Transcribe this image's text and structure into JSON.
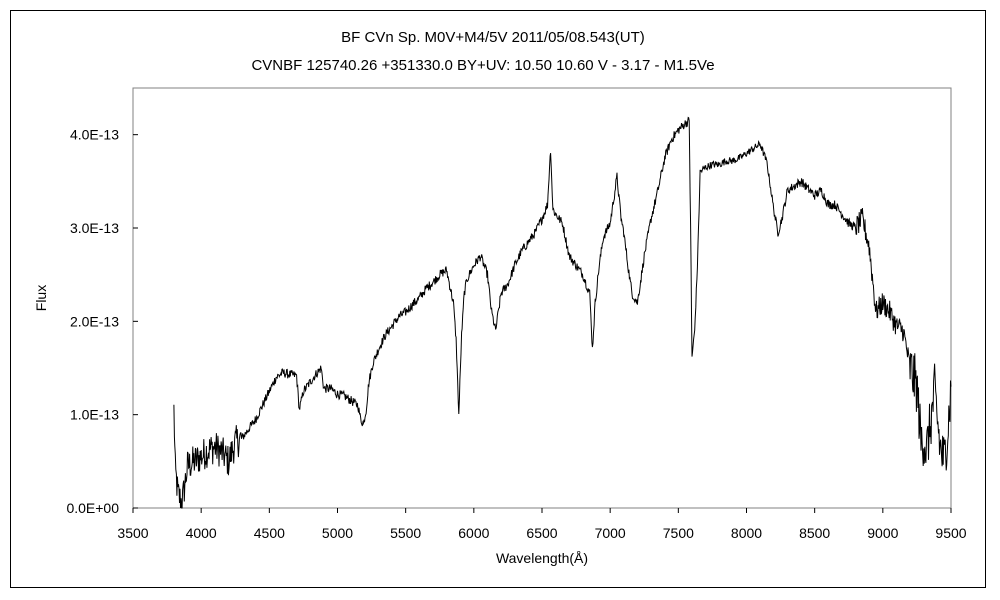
{
  "chart_data": {
    "type": "line",
    "title_line1": "BF CVn    Sp. M0V+M4/5V    2011/05/08.543(UT)",
    "title_line2": "CVNBF 125740.26 +351330.0 BY+UV: 10.50 10.60 V - 3.17 - M1.5Ve",
    "xlabel": "Wavelength(Å)",
    "ylabel": "Flux",
    "xlim": [
      3500,
      9500
    ],
    "ylim": [
      0,
      4.5e-13
    ],
    "x_ticks": [
      3500,
      4000,
      4500,
      5000,
      5500,
      6000,
      6500,
      7000,
      7500,
      8000,
      8500,
      9000,
      9500
    ],
    "x_tick_labels": [
      "3500",
      "4000",
      "4500",
      "5000",
      "5500",
      "6000",
      "6500",
      "7000",
      "7500",
      "8000",
      "8500",
      "9000",
      "9500"
    ],
    "y_ticks": [
      0,
      1e-13,
      2e-13,
      3e-13,
      4e-13
    ],
    "y_tick_labels": [
      "0.0E+00",
      "1.0E-13",
      "2.0E-13",
      "3.0E-13",
      "4.0E-13"
    ],
    "grid": false,
    "legend": "none",
    "series": [
      {
        "x": [
          3800,
          3810,
          3830,
          3860,
          3900,
          3950,
          4000,
          4050,
          4100,
          4150,
          4200,
          4250,
          4300,
          4350,
          4400,
          4450,
          4500,
          4550,
          4600,
          4650,
          4700,
          4720,
          4750,
          4800,
          4850,
          4880,
          4900,
          4950,
          5000,
          5050,
          5100,
          5150,
          5170,
          5190,
          5210,
          5230,
          5260,
          5300,
          5350,
          5400,
          5450,
          5500,
          5550,
          5600,
          5650,
          5700,
          5750,
          5800,
          5850,
          5870,
          5890,
          5910,
          5930,
          5950,
          6000,
          6050,
          6100,
          6130,
          6160,
          6200,
          6250,
          6300,
          6350,
          6400,
          6450,
          6500,
          6540,
          6563,
          6580,
          6600,
          6650,
          6700,
          6750,
          6800,
          6850,
          6870,
          6890,
          6920,
          6950,
          7000,
          7050,
          7080,
          7100,
          7130,
          7160,
          7200,
          7250,
          7300,
          7350,
          7400,
          7450,
          7500,
          7550,
          7580,
          7590,
          7600,
          7620,
          7640,
          7660,
          7700,
          7750,
          7800,
          7850,
          7900,
          7950,
          8000,
          8050,
          8100,
          8150,
          8200,
          8230,
          8260,
          8300,
          8350,
          8400,
          8450,
          8500,
          8550,
          8600,
          8650,
          8700,
          8750,
          8800,
          8850,
          8900,
          8950,
          9000,
          9050,
          9100,
          9150,
          9200,
          9250,
          9280,
          9300,
          9320,
          9350,
          9380,
          9420,
          9450,
          9480,
          9500
        ],
        "values": [
          1.05e-13,
          4e-14,
          1.5e-14,
          5e-15,
          4.5e-14,
          5e-14,
          5.5e-14,
          6.2e-14,
          6.5e-14,
          6e-14,
          5e-14,
          7e-14,
          7.5e-14,
          8.5e-14,
          9.5e-14,
          1.1e-13,
          1.25e-13,
          1.4e-13,
          1.45e-13,
          1.43e-13,
          1.42e-13,
          1.05e-13,
          1.25e-13,
          1.35e-13,
          1.45e-13,
          1.5e-13,
          1.28e-13,
          1.28e-13,
          1.22e-13,
          1.2e-13,
          1.15e-13,
          1.1e-13,
          9.5e-14,
          9e-14,
          1.05e-13,
          1.35e-13,
          1.55e-13,
          1.7e-13,
          1.85e-13,
          1.95e-13,
          2.05e-13,
          2.1e-13,
          2.18e-13,
          2.25e-13,
          2.35e-13,
          2.42e-13,
          2.5e-13,
          2.55e-13,
          2.2e-13,
          1.8e-13,
          1e-13,
          1.85e-13,
          2.3e-13,
          2.45e-13,
          2.6e-13,
          2.7e-13,
          2.5e-13,
          2.1e-13,
          1.9e-13,
          2.3e-13,
          2.4e-13,
          2.6e-13,
          2.75e-13,
          2.85e-13,
          2.95e-13,
          3.1e-13,
          3.25e-13,
          3.85e-13,
          3.2e-13,
          3.15e-13,
          3.05e-13,
          2.7e-13,
          2.6e-13,
          2.5e-13,
          2.3e-13,
          1.7e-13,
          2.2e-13,
          2.6e-13,
          2.9e-13,
          3.05e-13,
          3.55e-13,
          3.1e-13,
          2.95e-13,
          2.6e-13,
          2.3e-13,
          2.2e-13,
          2.7e-13,
          3.1e-13,
          3.4e-13,
          3.75e-13,
          3.95e-13,
          4.05e-13,
          4.12e-13,
          4.15e-13,
          3e-13,
          1.62e-13,
          1.9e-13,
          2.6e-13,
          3.6e-13,
          3.65e-13,
          3.68e-13,
          3.68e-13,
          3.72e-13,
          3.72e-13,
          3.75e-13,
          3.8e-13,
          3.85e-13,
          3.9e-13,
          3.7e-13,
          3.2e-13,
          2.95e-13,
          3.1e-13,
          3.4e-13,
          3.45e-13,
          3.5e-13,
          3.42e-13,
          3.35e-13,
          3.4e-13,
          3.25e-13,
          3.25e-13,
          3.15e-13,
          3.05e-13,
          3e-13,
          3.1e-13,
          2.8e-13,
          2.1e-13,
          2.2e-13,
          2.1e-13,
          1.95e-13,
          1.9e-13,
          1.5e-13,
          1.3e-13,
          7e-14,
          7.5e-14,
          6e-14,
          9e-14,
          1.25e-13,
          6.5e-14,
          5e-14,
          9e-14,
          1.3e-13
        ]
      }
    ]
  }
}
